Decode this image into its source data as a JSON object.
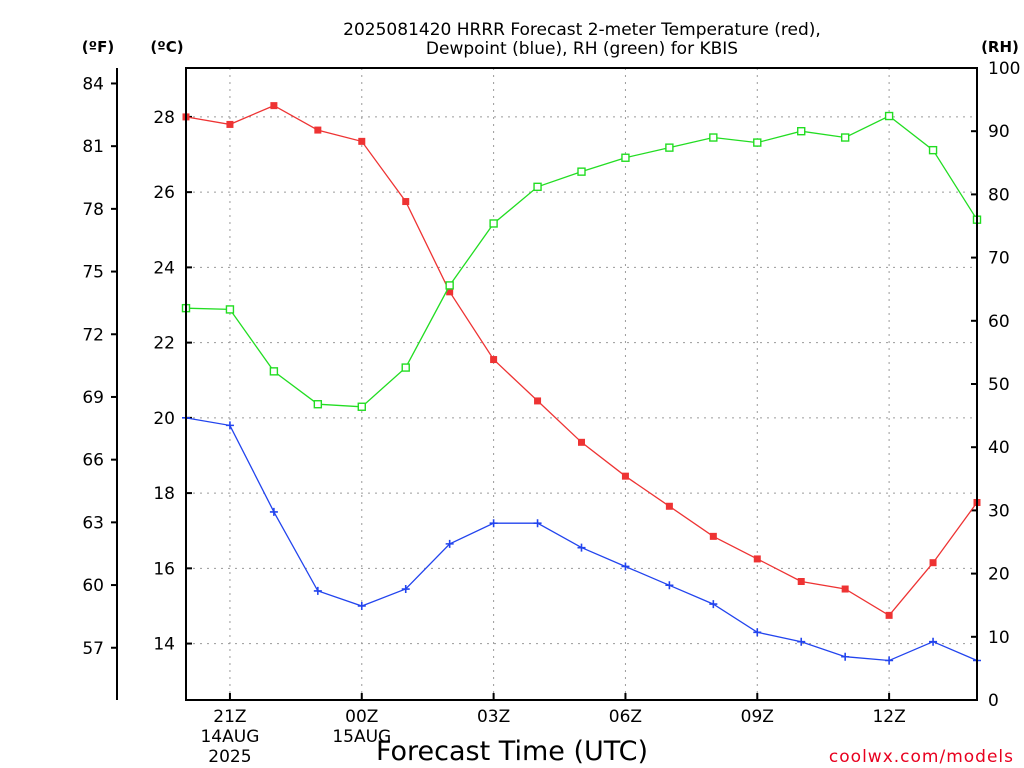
{
  "chart_data": {
    "type": "line",
    "title": [
      "2025081420 HRRR Forecast 2-meter Temperature (red),",
      "Dewpoint (blue), RH (green) for KBIS"
    ],
    "xlabel": "Forecast Time (UTC)",
    "credit": "coolwx.com/models",
    "units": {
      "fahrenheit": "(ºF)",
      "celsius": "(ºC)",
      "rh": "(RH)"
    },
    "x": [
      "2025-08-14 20Z",
      "2025-08-14 21Z",
      "2025-08-14 22Z",
      "2025-08-14 23Z",
      "2025-08-15 00Z",
      "2025-08-15 01Z",
      "2025-08-15 02Z",
      "2025-08-15 03Z",
      "2025-08-15 04Z",
      "2025-08-15 05Z",
      "2025-08-15 06Z",
      "2025-08-15 07Z",
      "2025-08-15 08Z",
      "2025-08-15 09Z",
      "2025-08-15 10Z",
      "2025-08-15 11Z",
      "2025-08-15 12Z",
      "2025-08-15 13Z",
      "2025-08-15 14Z"
    ],
    "x_tick_labels": [
      {
        "lines": [
          "21Z",
          "14AUG",
          "2025"
        ],
        "index": 1
      },
      {
        "lines": [
          "00Z",
          "15AUG"
        ],
        "index": 4
      },
      {
        "lines": [
          "03Z"
        ],
        "index": 7
      },
      {
        "lines": [
          "06Z"
        ],
        "index": 10
      },
      {
        "lines": [
          "09Z"
        ],
        "index": 13
      },
      {
        "lines": [
          "12Z"
        ],
        "index": 16
      }
    ],
    "celsius_axis": {
      "ylim": [
        12.5,
        29.3
      ],
      "ticks": [
        14,
        16,
        18,
        20,
        22,
        24,
        26,
        28
      ],
      "grid": true
    },
    "fahrenheit_axis": {
      "ticks": [
        57,
        60,
        63,
        66,
        69,
        72,
        75,
        78,
        81,
        84
      ]
    },
    "rh_axis": {
      "ylim": [
        0,
        100
      ],
      "ticks": [
        0,
        10,
        20,
        30,
        40,
        50,
        60,
        70,
        80,
        90,
        100
      ]
    },
    "series": [
      {
        "name": "Temperature",
        "axis": "celsius",
        "color": "#ee3333",
        "marker": "square-filled",
        "values": [
          28.0,
          27.8,
          28.3,
          27.65,
          27.35,
          25.75,
          23.35,
          21.55,
          20.45,
          19.35,
          18.45,
          17.65,
          16.85,
          16.25,
          15.65,
          15.45,
          14.75,
          16.15,
          17.75
        ]
      },
      {
        "name": "Dewpoint",
        "axis": "celsius",
        "color": "#2244ee",
        "marker": "plus",
        "values": [
          20.0,
          19.8,
          17.5,
          15.4,
          15.0,
          15.45,
          16.65,
          17.2,
          17.2,
          16.55,
          16.05,
          15.55,
          15.05,
          14.3,
          14.05,
          13.65,
          13.55,
          14.05,
          13.55
        ]
      },
      {
        "name": "RH",
        "axis": "rh",
        "color": "#22dd22",
        "marker": "square-open",
        "values": [
          62,
          61.8,
          52,
          46.8,
          46.4,
          52.6,
          65.6,
          75.4,
          81.2,
          83.6,
          85.8,
          87.4,
          89.0,
          88.2,
          90.0,
          89.0,
          92.4,
          87.0,
          76.0
        ]
      }
    ]
  }
}
